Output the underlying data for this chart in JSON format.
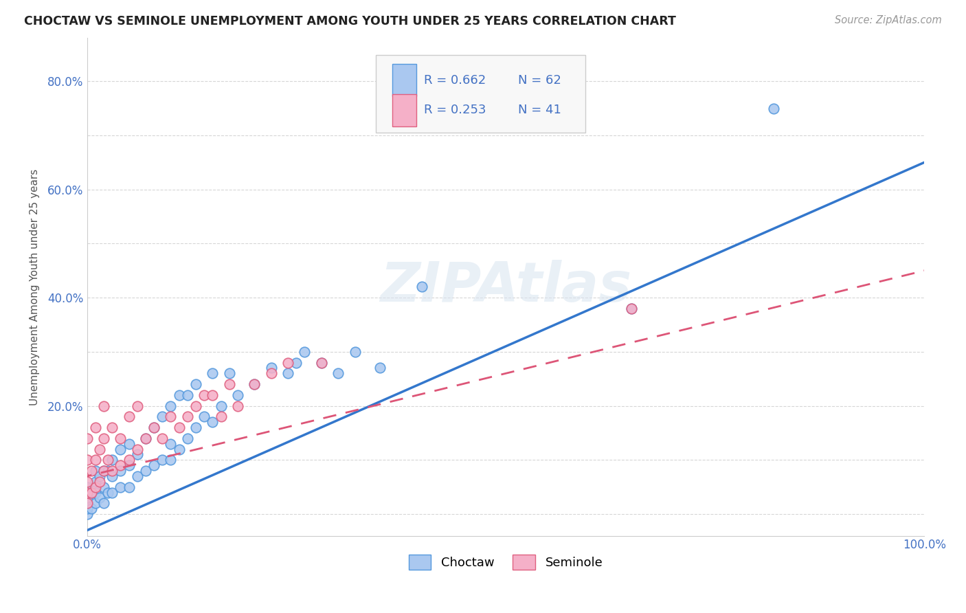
{
  "title": "CHOCTAW VS SEMINOLE UNEMPLOYMENT AMONG YOUTH UNDER 25 YEARS CORRELATION CHART",
  "source": "Source: ZipAtlas.com",
  "ylabel": "Unemployment Among Youth under 25 years",
  "xlim": [
    0.0,
    1.0
  ],
  "ylim": [
    -0.04,
    0.88
  ],
  "choctaw_R": 0.662,
  "choctaw_N": 62,
  "seminole_R": 0.253,
  "seminole_N": 41,
  "choctaw_scatter_color": "#aac8f0",
  "choctaw_edge_color": "#5599dd",
  "choctaw_line_color": "#3377cc",
  "seminole_scatter_color": "#f5b0c8",
  "seminole_edge_color": "#e06080",
  "seminole_line_color": "#dd5577",
  "legend_color": "#4472c4",
  "choctaw_line_intercept": -0.03,
  "choctaw_line_slope": 0.68,
  "seminole_line_intercept": 0.07,
  "seminole_line_slope": 0.38,
  "choctaw_x": [
    0.0,
    0.0,
    0.0,
    0.0,
    0.0,
    0.005,
    0.005,
    0.01,
    0.01,
    0.01,
    0.01,
    0.015,
    0.015,
    0.02,
    0.02,
    0.02,
    0.025,
    0.025,
    0.03,
    0.03,
    0.03,
    0.04,
    0.04,
    0.04,
    0.05,
    0.05,
    0.05,
    0.06,
    0.06,
    0.07,
    0.07,
    0.08,
    0.08,
    0.09,
    0.09,
    0.1,
    0.1,
    0.1,
    0.11,
    0.11,
    0.12,
    0.12,
    0.13,
    0.13,
    0.14,
    0.15,
    0.15,
    0.16,
    0.17,
    0.18,
    0.2,
    0.22,
    0.24,
    0.25,
    0.26,
    0.28,
    0.3,
    0.32,
    0.35,
    0.4,
    0.65,
    0.82
  ],
  "choctaw_y": [
    0.0,
    0.01,
    0.02,
    0.03,
    0.05,
    0.01,
    0.04,
    0.02,
    0.04,
    0.06,
    0.08,
    0.03,
    0.07,
    0.02,
    0.05,
    0.08,
    0.04,
    0.08,
    0.04,
    0.07,
    0.1,
    0.05,
    0.08,
    0.12,
    0.05,
    0.09,
    0.13,
    0.07,
    0.11,
    0.08,
    0.14,
    0.09,
    0.16,
    0.1,
    0.18,
    0.1,
    0.13,
    0.2,
    0.12,
    0.22,
    0.14,
    0.22,
    0.16,
    0.24,
    0.18,
    0.17,
    0.26,
    0.2,
    0.26,
    0.22,
    0.24,
    0.27,
    0.26,
    0.28,
    0.3,
    0.28,
    0.26,
    0.3,
    0.27,
    0.42,
    0.38,
    0.75
  ],
  "seminole_x": [
    0.0,
    0.0,
    0.0,
    0.0,
    0.0,
    0.005,
    0.005,
    0.01,
    0.01,
    0.01,
    0.015,
    0.015,
    0.02,
    0.02,
    0.02,
    0.025,
    0.03,
    0.03,
    0.04,
    0.04,
    0.05,
    0.05,
    0.06,
    0.06,
    0.07,
    0.08,
    0.09,
    0.1,
    0.11,
    0.12,
    0.13,
    0.14,
    0.15,
    0.16,
    0.17,
    0.18,
    0.2,
    0.22,
    0.24,
    0.28,
    0.65
  ],
  "seminole_y": [
    0.02,
    0.04,
    0.06,
    0.1,
    0.14,
    0.04,
    0.08,
    0.05,
    0.1,
    0.16,
    0.06,
    0.12,
    0.08,
    0.14,
    0.2,
    0.1,
    0.08,
    0.16,
    0.09,
    0.14,
    0.1,
    0.18,
    0.12,
    0.2,
    0.14,
    0.16,
    0.14,
    0.18,
    0.16,
    0.18,
    0.2,
    0.22,
    0.22,
    0.18,
    0.24,
    0.2,
    0.24,
    0.26,
    0.28,
    0.28,
    0.38
  ]
}
